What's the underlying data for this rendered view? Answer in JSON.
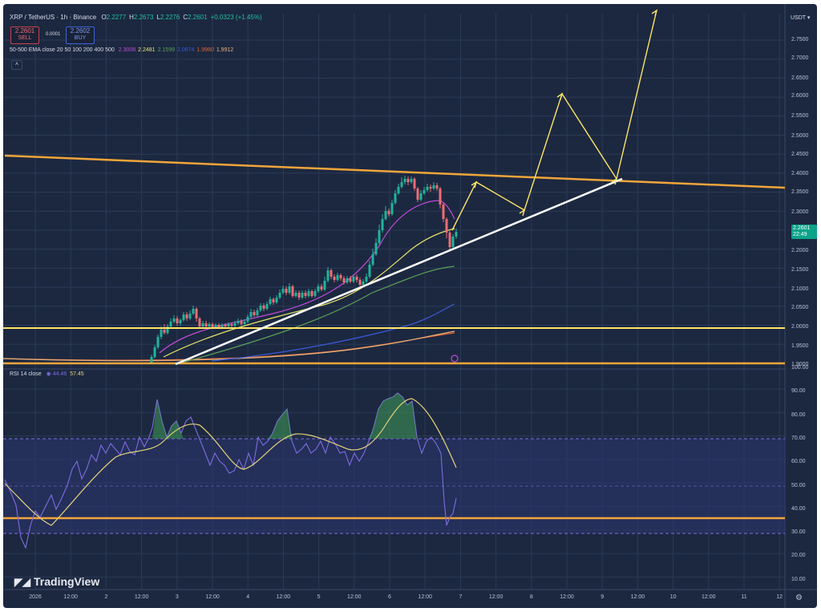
{
  "header": {
    "symbol": "XRP / TetherUS · 1h · Binance",
    "ohlc": [
      {
        "label": "O",
        "value": "2.2277"
      },
      {
        "label": "H",
        "value": "2.2673"
      },
      {
        "label": "L",
        "value": "2.2276"
      },
      {
        "label": "C",
        "value": "2.2601"
      },
      {
        "label": "",
        "value": "+0.0323 (+1.45%)"
      }
    ],
    "sell_price": "2.2601",
    "sell_label": "SELL",
    "spread": "0.0001",
    "buy_price": "2.2602",
    "buy_label": "BUY",
    "ema_label": "50-500 EMA close 20 50 100 200 400 500",
    "ema_values": [
      {
        "value": "2.3008",
        "color": "#c04bd8"
      },
      {
        "value": "2.2481",
        "color": "#e6e36a"
      },
      {
        "value": "2.1599",
        "color": "#5aa05a"
      },
      {
        "value": "2.0674",
        "color": "#3a5bd9"
      },
      {
        "value": "1.9980",
        "color": "#e0643a"
      },
      {
        "value": "1.9912",
        "color": "#e7b27a"
      }
    ],
    "collapse_icon": "chevron-up-icon"
  },
  "price_axis": {
    "currency": "USDT",
    "labels": [
      "2.7500",
      "2.7000",
      "2.6500",
      "2.6000",
      "2.5500",
      "2.5000",
      "2.4500",
      "2.4000",
      "2.3500",
      "2.3000",
      "2.2000",
      "2.1500",
      "2.1000",
      "2.0500",
      "2.0000",
      "1.9500",
      "1.9000"
    ],
    "current_price": "2.2601",
    "countdown": "22:49"
  },
  "rsi": {
    "label": "RSI 14 close",
    "value1": "44.46",
    "value2": "57.45",
    "axis_labels": [
      "100.00",
      "90.00",
      "80.00",
      "70.00",
      "60.00",
      "50.00",
      "40.00",
      "30.00",
      "20.00",
      "10.00"
    ]
  },
  "time_axis": [
    "2026",
    "12:00",
    "2",
    "12:00",
    "3",
    "12:00",
    "4",
    "12:00",
    "5",
    "12:00",
    "6",
    "12:00",
    "7",
    "12:00",
    "8",
    "12:00",
    "9",
    "12:00",
    "10",
    "12:00",
    "11",
    "12"
  ],
  "brand": "TradingView",
  "brand_icon": "tradingview-logo-icon",
  "settings_icon": "settings-icon",
  "colors": {
    "background": "#1c2840",
    "grid": "#2b3a56",
    "bull": "#20b39a",
    "bear": "#ef6b73",
    "trendline_orange": "#f2a53a",
    "support_yellow": "#ffe566",
    "white_trend": "#ffffff",
    "rsi_line": "#7f6de0",
    "rsi_ma": "#e6d27a"
  }
}
